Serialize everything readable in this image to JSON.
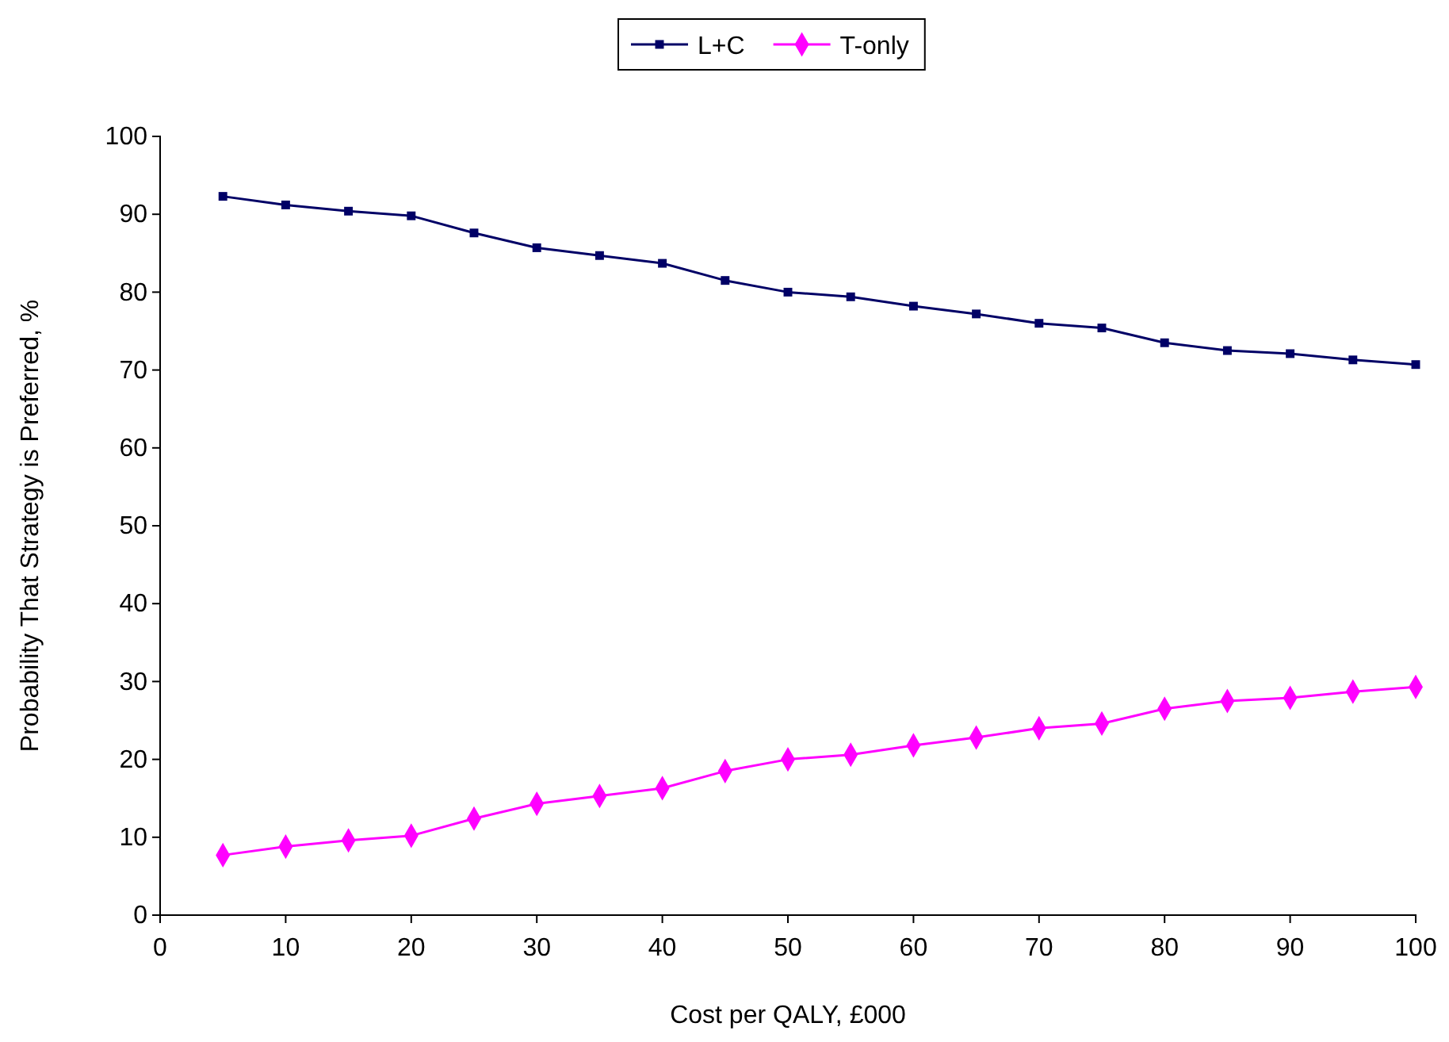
{
  "chart_data": {
    "type": "line",
    "xlabel": "Cost per QALY,  £000",
    "ylabel": "Probability That Strategy is Preferred, %",
    "x": [
      5,
      10,
      15,
      20,
      25,
      30,
      35,
      40,
      45,
      50,
      55,
      60,
      65,
      70,
      75,
      80,
      85,
      90,
      95,
      100
    ],
    "series": [
      {
        "name": "L+C",
        "color": "#000066",
        "marker": "square",
        "values": [
          92.3,
          91.2,
          90.4,
          89.8,
          87.6,
          85.7,
          84.7,
          83.7,
          81.5,
          80.0,
          79.4,
          78.2,
          77.2,
          76.0,
          75.4,
          73.5,
          72.5,
          72.1,
          71.3,
          70.7
        ]
      },
      {
        "name": "T-only",
        "color": "#ff00ff",
        "marker": "diamond",
        "values": [
          7.7,
          8.8,
          9.6,
          10.2,
          12.4,
          14.3,
          15.3,
          16.3,
          18.5,
          20.0,
          20.6,
          21.8,
          22.8,
          24.0,
          24.6,
          26.5,
          27.5,
          27.9,
          28.7,
          29.3
        ]
      }
    ],
    "xlim": [
      0,
      100
    ],
    "xticks": [
      0,
      10,
      20,
      30,
      40,
      50,
      60,
      70,
      80,
      90,
      100
    ],
    "ylim": [
      0,
      100
    ],
    "yticks": [
      0,
      10,
      20,
      30,
      40,
      50,
      60,
      70,
      80,
      90,
      100
    ],
    "grid": false,
    "legend": "top",
    "line_style": "solid"
  }
}
